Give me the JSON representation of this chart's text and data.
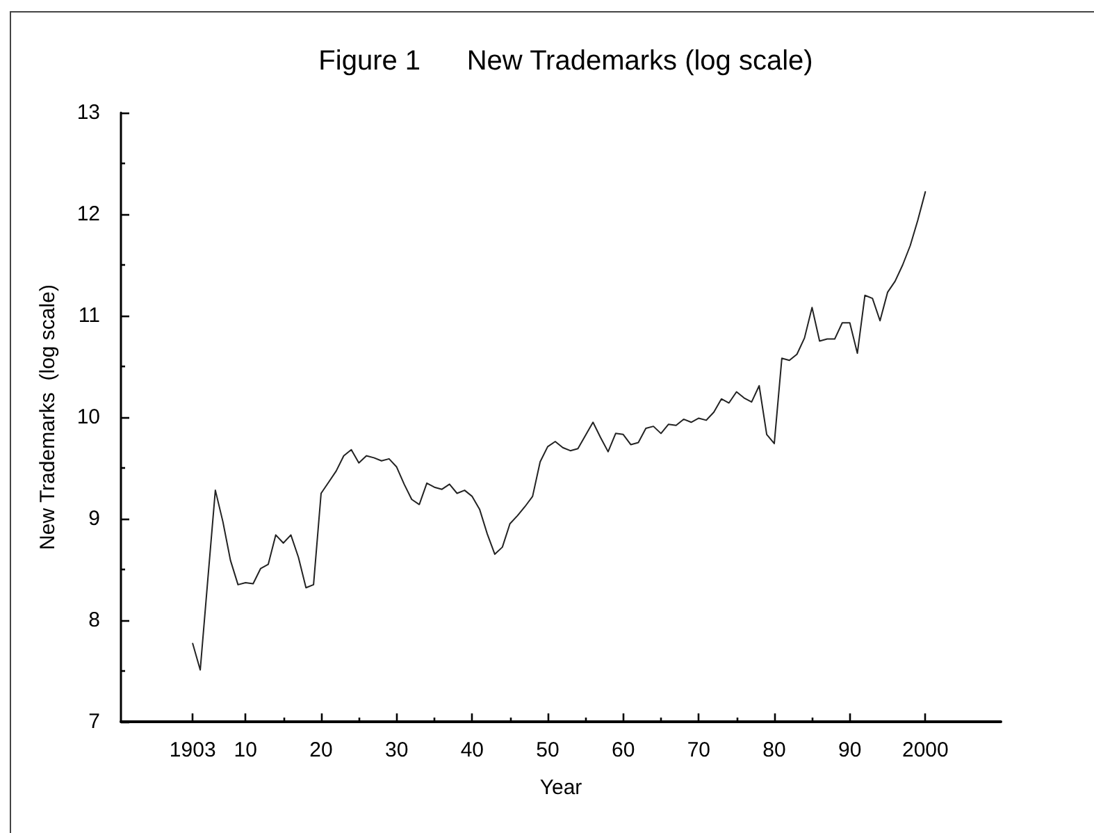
{
  "chart_data": {
    "type": "line",
    "title": "Figure 1      New Trademarks (log scale)",
    "xlabel": "Year",
    "ylabel": "New Trademarks  (log scale)",
    "x": [
      1903,
      1904,
      1905,
      1906,
      1907,
      1908,
      1909,
      1910,
      1911,
      1912,
      1913,
      1914,
      1915,
      1916,
      1917,
      1918,
      1919,
      1920,
      1921,
      1922,
      1923,
      1924,
      1925,
      1926,
      1927,
      1928,
      1929,
      1930,
      1931,
      1932,
      1933,
      1934,
      1935,
      1936,
      1937,
      1938,
      1939,
      1940,
      1941,
      1942,
      1943,
      1944,
      1945,
      1946,
      1947,
      1948,
      1949,
      1950,
      1951,
      1952,
      1953,
      1954,
      1955,
      1956,
      1957,
      1958,
      1959,
      1960,
      1961,
      1962,
      1963,
      1964,
      1965,
      1966,
      1967,
      1968,
      1969,
      1970,
      1971,
      1972,
      1973,
      1974,
      1975,
      1976,
      1977,
      1978,
      1979,
      1980,
      1981,
      1982,
      1983,
      1984,
      1985,
      1986,
      1987,
      1988,
      1989,
      1990,
      1991,
      1992,
      1993,
      1994,
      1995,
      1996,
      1997,
      1998,
      1999,
      2000
    ],
    "values": [
      7.77,
      7.51,
      8.4,
      9.28,
      8.97,
      8.59,
      8.35,
      8.37,
      8.36,
      8.51,
      8.55,
      8.84,
      8.76,
      8.84,
      8.62,
      8.32,
      8.35,
      9.25,
      9.36,
      9.47,
      9.62,
      9.68,
      9.55,
      9.62,
      9.6,
      9.57,
      9.59,
      9.51,
      9.34,
      9.19,
      9.14,
      9.35,
      9.31,
      9.29,
      9.34,
      9.25,
      9.28,
      9.22,
      9.09,
      8.85,
      8.65,
      8.72,
      8.95,
      9.03,
      9.12,
      9.22,
      9.56,
      9.71,
      9.76,
      9.7,
      9.67,
      9.69,
      9.82,
      9.95,
      9.8,
      9.66,
      9.84,
      9.83,
      9.73,
      9.75,
      9.89,
      9.91,
      9.84,
      9.93,
      9.92,
      9.98,
      9.95,
      9.99,
      9.97,
      10.05,
      10.18,
      10.14,
      10.25,
      10.19,
      10.15,
      10.31,
      9.83,
      9.74,
      10.58,
      10.56,
      10.62,
      10.78,
      11.08,
      10.75,
      10.77,
      10.77,
      10.93,
      10.93,
      10.63,
      11.2,
      11.17,
      10.95,
      11.23,
      11.34,
      11.5,
      11.69,
      11.94,
      12.22
    ],
    "color": "#222222",
    "marker": "none",
    "xlim": [
      1893.5,
      2010
    ],
    "xticks": [
      {
        "value": 1903,
        "label": "1903"
      },
      {
        "value": 1910,
        "label": "10"
      },
      {
        "value": 1915,
        "label": null
      },
      {
        "value": 1920,
        "label": "20"
      },
      {
        "value": 1925,
        "label": null
      },
      {
        "value": 1930,
        "label": "30"
      },
      {
        "value": 1935,
        "label": null
      },
      {
        "value": 1940,
        "label": "40"
      },
      {
        "value": 1945,
        "label": null
      },
      {
        "value": 1950,
        "label": "50"
      },
      {
        "value": 1955,
        "label": null
      },
      {
        "value": 1960,
        "label": "60"
      },
      {
        "value": 1965,
        "label": null
      },
      {
        "value": 1970,
        "label": "70"
      },
      {
        "value": 1975,
        "label": null
      },
      {
        "value": 1980,
        "label": "80"
      },
      {
        "value": 1985,
        "label": null
      },
      {
        "value": 1990,
        "label": "90"
      },
      {
        "value": 2000,
        "label": "2000"
      }
    ],
    "ylim": [
      7,
      13
    ],
    "yticks": [
      7,
      {
        "value": 7.5,
        "label": null
      },
      8,
      {
        "value": 8.5,
        "label": null
      },
      9,
      {
        "value": 9.5,
        "label": null
      },
      10,
      {
        "value": 10.5,
        "label": null
      },
      11,
      {
        "value": 11.5,
        "label": null
      },
      12,
      {
        "value": 12.5,
        "label": null
      },
      13
    ]
  }
}
